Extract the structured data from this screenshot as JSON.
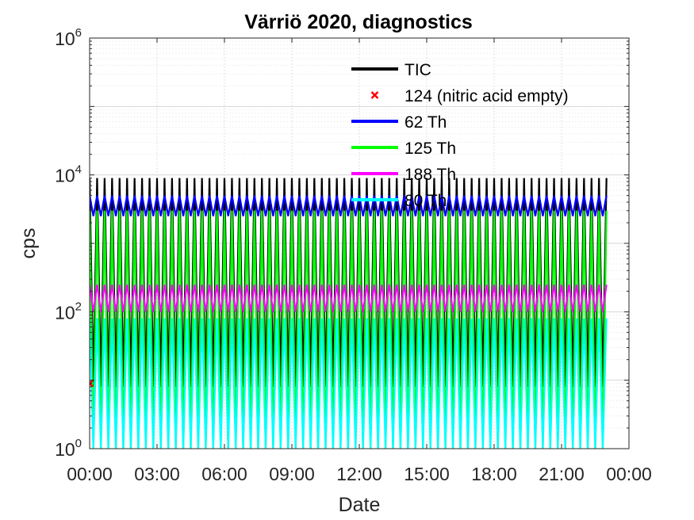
{
  "chart_data": {
    "type": "line",
    "title": "Värriö 2020, diagnostics",
    "xlabel": "Date",
    "ylabel": "cps",
    "yscale": "log",
    "ylim": [
      1,
      1000000
    ],
    "xlim": [
      "00:00",
      "24:00"
    ],
    "x_ticks": [
      "00:00",
      "03:00",
      "06:00",
      "09:00",
      "12:00",
      "15:00",
      "18:00",
      "21:00",
      "00:00"
    ],
    "y_ticks": [
      {
        "base": "10",
        "exp": "0"
      },
      {
        "base": "10",
        "exp": "2"
      },
      {
        "base": "10",
        "exp": "4"
      },
      {
        "base": "10",
        "exp": "6"
      }
    ],
    "grid": true,
    "legend_position": "top-right",
    "oscillation_period_minutes": 20,
    "data_end": "23:00",
    "series": [
      {
        "name": "TIC",
        "color": "#000000",
        "marker": "line",
        "high": 9000,
        "low": 8
      },
      {
        "name": "124 (nitric acid empty)",
        "color": "#ff0000",
        "marker": "x",
        "points": [
          {
            "x": "00:00",
            "y": 9
          }
        ]
      },
      {
        "name": "62 Th",
        "color": "#0000ff",
        "marker": "line",
        "high": 5000,
        "low": 2500
      },
      {
        "name": "125 Th",
        "color": "#00ff00",
        "marker": "line",
        "high": 3000,
        "low": 1
      },
      {
        "name": "188 Th",
        "color": "#ff00ff",
        "marker": "line",
        "high": 250,
        "low": 100
      },
      {
        "name": "80 Th",
        "color": "#00ffff",
        "marker": "line",
        "high": 80,
        "low": 1
      }
    ]
  }
}
